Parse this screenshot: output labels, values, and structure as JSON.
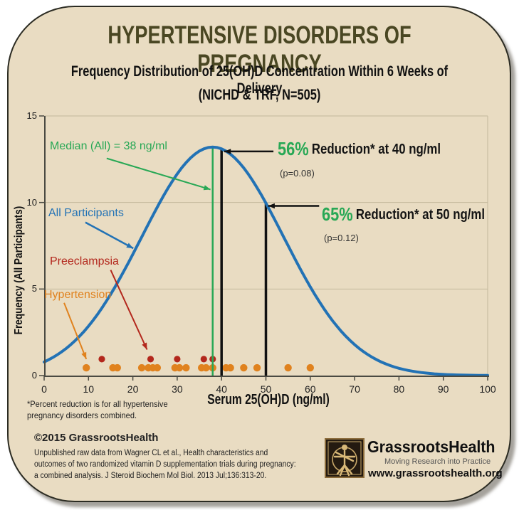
{
  "header": {
    "title": "HYPERTENSIVE DISORDERS OF PREGNANCY",
    "subtitle_line1": "Frequency Distribution of 25(OH)D Concentration Within 6 Weeks of Delivery",
    "subtitle_line2": "(NICHD & TRF, N=505)"
  },
  "colors": {
    "blue": "#2272b5",
    "green": "#28a855",
    "orange": "#e0821e",
    "red": "#b3271c",
    "black": "#111111",
    "grid": "#c4b99c",
    "axis": "#4a4a42",
    "title_olive": "#4a4723",
    "card_bg": "#e9dcc2"
  },
  "chart_data": {
    "type": "line",
    "title": "Frequency Distribution of 25(OH)D Concentration Within 6 Weeks of Delivery (NICHD & TRF, N=505)",
    "xlabel": "Serum 25(OH)D (ng/ml)",
    "ylabel": "Frequency (All Participants)",
    "xlim": [
      0,
      100
    ],
    "ylim": [
      0,
      15
    ],
    "x_ticks": [
      0,
      10,
      20,
      30,
      40,
      50,
      60,
      70,
      80,
      90,
      100
    ],
    "y_ticks": [
      0,
      5,
      10,
      15
    ],
    "grid_y": [
      5,
      10,
      15
    ],
    "legend_position": "inside-left",
    "curve": {
      "name": "All Participants",
      "shape": "gaussian",
      "mean": 38,
      "sigma": 16,
      "peak": 13.2,
      "color": "blue"
    },
    "median_line": {
      "x": 38,
      "top": 13.2,
      "color": "green"
    },
    "marker_lines": [
      {
        "x": 40,
        "top": 13.08,
        "color": "black"
      },
      {
        "x": 50,
        "top": 9.96,
        "color": "black"
      }
    ],
    "scatter": [
      {
        "name": "Preeclampsia",
        "color": "red",
        "y": 0.95,
        "x": [
          13,
          24,
          30,
          36,
          38
        ]
      },
      {
        "name": "Hypertension",
        "color": "orange",
        "y": 0.45,
        "x": [
          9.5,
          15.5,
          16.5,
          22,
          23.5,
          24.5,
          25.5,
          29.5,
          30.5,
          32,
          35.5,
          36.5,
          38,
          41,
          42,
          45,
          48,
          55,
          60
        ]
      }
    ],
    "arrows": [
      {
        "name": "median",
        "color": "green",
        "w": 2,
        "from": [
          14.1,
          12.55
        ],
        "to": [
          37.5,
          10.75
        ]
      },
      {
        "name": "all-participants",
        "color": "blue",
        "w": 2.5,
        "from": [
          9.3,
          8.85
        ],
        "to": [
          20.1,
          7.35
        ]
      },
      {
        "name": "preeclampsia",
        "color": "red",
        "w": 2,
        "from": [
          15.0,
          6.1
        ],
        "to": [
          23.2,
          1.5
        ]
      },
      {
        "name": "hypertension",
        "color": "orange",
        "w": 2,
        "from": [
          4.5,
          4.2
        ],
        "to": [
          9.5,
          0.95
        ]
      },
      {
        "name": "reduction-40",
        "color": "black",
        "w": 2.5,
        "from": [
          51.7,
          12.95
        ],
        "to": [
          40.6,
          12.95
        ]
      },
      {
        "name": "reduction-50",
        "color": "black",
        "w": 2.5,
        "from": [
          62.0,
          9.8
        ],
        "to": [
          50.5,
          9.8
        ]
      }
    ],
    "annotations": {
      "median_label": "Median (All) = 38 ng/ml",
      "series_label": "All Participants",
      "preeclampsia_label": "Preeclampsia",
      "hypertension_label": "Hypertension",
      "reduction40": {
        "pct": "56%",
        "text": "Reduction* at 40 ng/ml",
        "p": "(p=0.08)"
      },
      "reduction50": {
        "pct": "65%",
        "text": "Reduction* at 50 ng/ml",
        "p": "(p=0.12)"
      }
    }
  },
  "footnote": {
    "line1": "*Percent reduction is for all hypertensive",
    "line2": "pregnancy disorders combined."
  },
  "footer": {
    "copyright": "©2015 GrassrootsHealth",
    "citation_lines": [
      "Unpublished raw data from Wagner CL et al., Health characteristics and",
      "outcomes of two randomized vitamin D supplementation trials during pregnancy:",
      "a combined analysis. J Steroid Biochem Mol Biol. 2013 Jul;136:313-20."
    ],
    "brand": "GrassrootsHealth",
    "tagline": "Moving Research into Practice",
    "url": "www.grassrootshealth.org"
  }
}
